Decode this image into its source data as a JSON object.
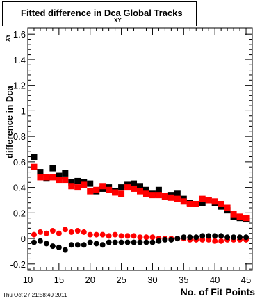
{
  "title_main": "Fitted difference in Dca   Global Tracks",
  "title_sub": "XY",
  "footer": "Thu Oct 27 21:58:40 2011",
  "chart_data": {
    "type": "scatter",
    "title": "Fitted difference in Dca Global Tracks",
    "xlabel": "No. of Fit Points",
    "ylabel": "difference in Dca",
    "ylabel_sub": "XY",
    "xlim": [
      10,
      46
    ],
    "ylim": [
      -0.25,
      1.65
    ],
    "xticks": [
      10,
      15,
      20,
      25,
      30,
      35,
      40,
      45
    ],
    "yticks": [
      -0.2,
      0,
      0.2,
      0.4,
      0.6,
      0.8,
      1,
      1.2,
      1.4,
      1.6
    ],
    "ytick_labels": [
      "-0.2",
      "0",
      "0.2",
      "0.4",
      "0.6",
      "0.8",
      "1",
      "1.2",
      "1.4",
      "1.6"
    ],
    "grid": false,
    "legend": "none",
    "x": [
      11,
      12,
      13,
      14,
      15,
      16,
      17,
      18,
      19,
      20,
      21,
      22,
      23,
      24,
      25,
      26,
      27,
      28,
      29,
      30,
      31,
      32,
      33,
      34,
      35,
      36,
      37,
      38,
      39,
      40,
      41,
      42,
      43,
      44,
      45
    ],
    "series": [
      {
        "color": "#000000",
        "marker": "square",
        "values": [
          0.64,
          0.52,
          0.47,
          0.55,
          0.49,
          0.51,
          0.44,
          0.45,
          0.44,
          0.43,
          0.37,
          0.39,
          0.4,
          0.37,
          0.4,
          0.42,
          0.43,
          0.41,
          0.38,
          0.35,
          0.38,
          0.33,
          0.34,
          0.35,
          0.31,
          0.28,
          0.27,
          0.28,
          0.3,
          0.28,
          0.25,
          0.22,
          0.17,
          0.16,
          0.15
        ]
      },
      {
        "color": "#ff0000",
        "marker": "square",
        "values": [
          0.56,
          0.48,
          0.48,
          0.48,
          0.46,
          0.46,
          0.41,
          0.4,
          0.42,
          0.37,
          0.38,
          0.41,
          0.38,
          0.36,
          0.35,
          0.4,
          0.39,
          0.37,
          0.35,
          0.34,
          0.34,
          0.33,
          0.32,
          0.31,
          0.29,
          0.27,
          0.27,
          0.31,
          0.3,
          0.29,
          0.27,
          0.24,
          0.19,
          0.17,
          0.16
        ]
      },
      {
        "color": "#ff0000",
        "marker": "circle",
        "values": [
          0.03,
          0.05,
          0.04,
          0.06,
          0.04,
          0.07,
          0.05,
          0.06,
          0.05,
          0.03,
          0.03,
          0.03,
          0.02,
          0.03,
          0.02,
          0.02,
          0.02,
          0.01,
          0.01,
          0.01,
          0.0,
          0.0,
          0.0,
          0.0,
          0.0,
          -0.01,
          -0.01,
          -0.01,
          -0.01,
          -0.02,
          -0.02,
          -0.01,
          -0.01,
          -0.01,
          -0.01
        ]
      },
      {
        "color": "#000000",
        "marker": "circle",
        "values": [
          -0.03,
          -0.02,
          -0.04,
          -0.06,
          -0.07,
          -0.09,
          -0.05,
          -0.05,
          -0.05,
          -0.03,
          -0.04,
          -0.05,
          -0.03,
          -0.03,
          -0.03,
          -0.03,
          -0.03,
          -0.03,
          -0.03,
          -0.03,
          -0.02,
          -0.01,
          -0.01,
          0.0,
          0.01,
          0.01,
          0.01,
          0.02,
          0.02,
          0.02,
          0.02,
          0.01,
          0.01,
          0.01,
          0.01
        ]
      }
    ]
  }
}
